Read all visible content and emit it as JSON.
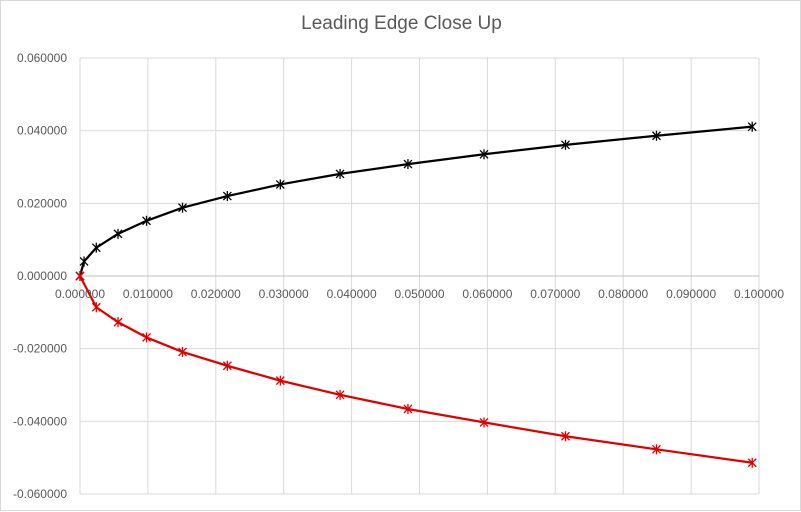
{
  "chart_data": {
    "type": "scatter",
    "title": "Leading Edge Close Up",
    "xlabel": "",
    "ylabel": "",
    "xlim": [
      0.0,
      0.1
    ],
    "ylim": [
      -0.06,
      0.06
    ],
    "x_ticks": [
      "0.000000",
      "0.010000",
      "0.020000",
      "0.030000",
      "0.040000",
      "0.050000",
      "0.060000",
      "0.070000",
      "0.080000",
      "0.090000",
      "0.100000"
    ],
    "y_ticks": [
      "0.060000",
      "0.040000",
      "0.020000",
      "0.000000",
      "-0.020000",
      "-0.040000",
      "-0.060000"
    ],
    "grid": true,
    "series": [
      {
        "color": "#000000",
        "marker": "asterisk",
        "points": [
          [
            0.0,
            0.0
          ],
          [
            0.0006,
            0.004
          ],
          [
            0.0024,
            0.0078
          ],
          [
            0.0056,
            0.0116
          ],
          [
            0.0098,
            0.0152
          ],
          [
            0.0151,
            0.0188
          ],
          [
            0.0217,
            0.022
          ],
          [
            0.0295,
            0.0252
          ],
          [
            0.0383,
            0.0281
          ],
          [
            0.0483,
            0.0308
          ],
          [
            0.0595,
            0.0335
          ],
          [
            0.0715,
            0.0361
          ],
          [
            0.0849,
            0.0386
          ],
          [
            0.099,
            0.0411
          ]
        ]
      },
      {
        "color": "#e00000",
        "marker": "asterisk",
        "points": [
          [
            0.0,
            0.0
          ],
          [
            0.0024,
            -0.0086
          ],
          [
            0.0056,
            -0.0127
          ],
          [
            0.0098,
            -0.0169
          ],
          [
            0.0151,
            -0.0209
          ],
          [
            0.0217,
            -0.0247
          ],
          [
            0.0295,
            -0.0288
          ],
          [
            0.0383,
            -0.0327
          ],
          [
            0.0483,
            -0.0366
          ],
          [
            0.0595,
            -0.0403
          ],
          [
            0.0715,
            -0.0441
          ],
          [
            0.0849,
            -0.0477
          ],
          [
            0.099,
            -0.0514
          ]
        ]
      }
    ]
  }
}
